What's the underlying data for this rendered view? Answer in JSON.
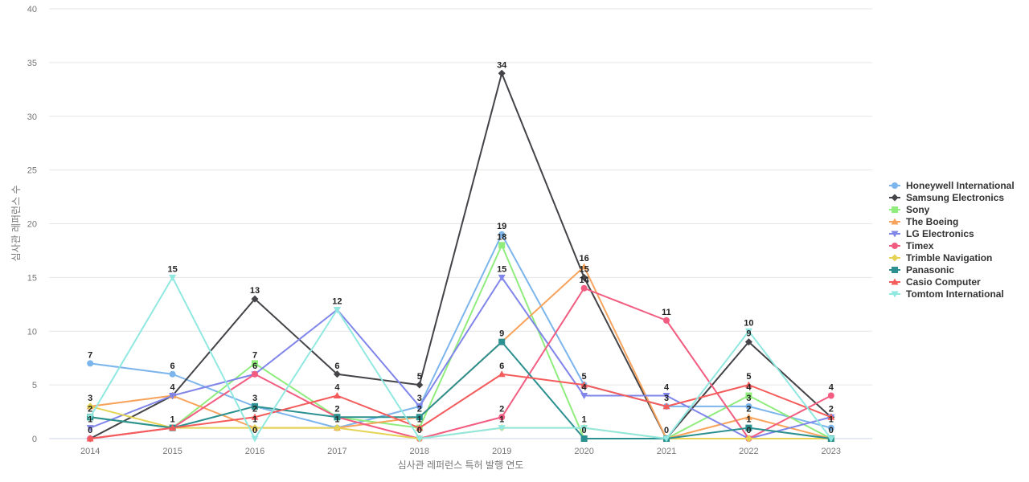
{
  "chart_data": {
    "type": "line",
    "title": "",
    "xlabel": "심사관 레퍼런스 특허 발행 연도",
    "ylabel": "심사관 레퍼런스 수",
    "categories": [
      "2014",
      "2015",
      "2016",
      "2017",
      "2018",
      "2019",
      "2020",
      "2021",
      "2022",
      "2023"
    ],
    "ylim": [
      0,
      40
    ],
    "yticks": [
      0,
      5,
      10,
      15,
      20,
      25,
      30,
      35,
      40
    ],
    "grid": true,
    "legend_position": "right",
    "series": [
      {
        "name": "Honeywell International",
        "color": "#7cb5ec",
        "marker": "circle",
        "values": [
          7,
          6,
          3,
          1,
          3,
          19,
          5,
          3,
          3,
          1
        ]
      },
      {
        "name": "Samsung Electronics",
        "color": "#434348",
        "marker": "diamond",
        "values": [
          0,
          4,
          13,
          6,
          5,
          34,
          15,
          0,
          9,
          2
        ]
      },
      {
        "name": "Sony",
        "color": "#90ed7d",
        "marker": "square",
        "values": [
          2,
          1,
          7,
          2,
          1,
          18,
          0,
          0,
          4,
          0
        ]
      },
      {
        "name": "The Boeing",
        "color": "#f7a35c",
        "marker": "triangle",
        "values": [
          3,
          4,
          1,
          1,
          2,
          9,
          16,
          0,
          2,
          0
        ]
      },
      {
        "name": "LG Electronics",
        "color": "#8085e9",
        "marker": "triangle-down",
        "values": [
          1,
          4,
          6,
          12,
          3,
          15,
          4,
          4,
          0,
          2
        ]
      },
      {
        "name": "Timex",
        "color": "#f15c80",
        "marker": "circle",
        "values": [
          0,
          1,
          6,
          2,
          0,
          2,
          14,
          11,
          0,
          4
        ]
      },
      {
        "name": "Trimble Navigation",
        "color": "#e4d354",
        "marker": "diamond",
        "values": [
          3,
          1,
          1,
          1,
          0,
          1,
          1,
          0,
          0,
          0
        ]
      },
      {
        "name": "Panasonic",
        "color": "#2b908f",
        "marker": "square",
        "values": [
          2,
          1,
          3,
          2,
          2,
          9,
          0,
          0,
          1,
          0
        ]
      },
      {
        "name": "Casio Computer",
        "color": "#f45b5b",
        "marker": "triangle",
        "values": [
          0,
          1,
          2,
          4,
          1,
          6,
          5,
          3,
          5,
          2
        ]
      },
      {
        "name": "Tomtom International",
        "color": "#91e8e1",
        "marker": "triangle-down",
        "values": [
          2,
          15,
          0,
          12,
          0,
          1,
          1,
          0,
          10,
          0
        ]
      }
    ]
  }
}
